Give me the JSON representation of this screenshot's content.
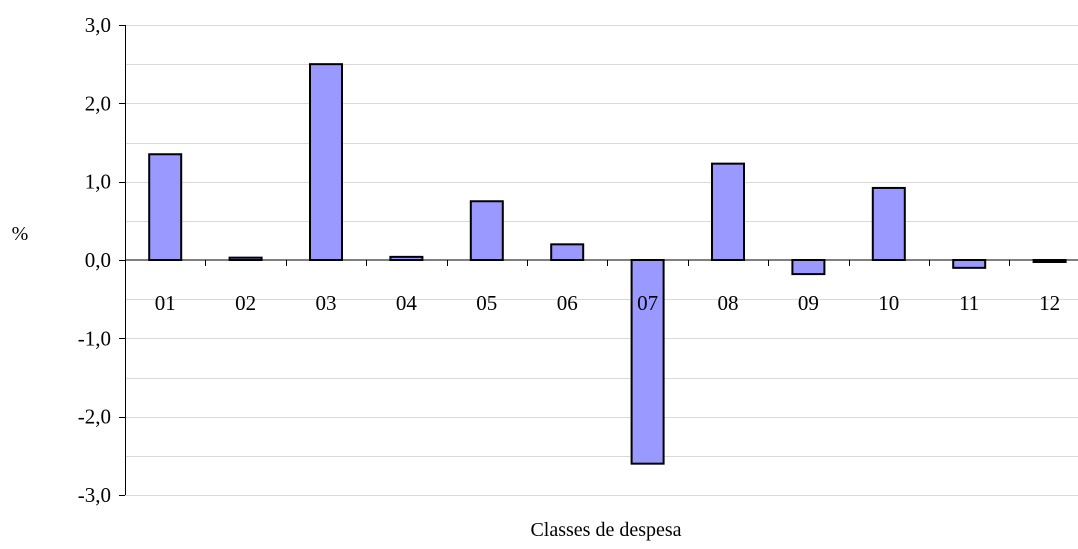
{
  "chart_data": {
    "type": "bar",
    "title": "",
    "xlabel": "Classes de despesa",
    "ylabel": "%",
    "categories": [
      "01",
      "02",
      "03",
      "04",
      "05",
      "06",
      "07",
      "08",
      "09",
      "10",
      "11",
      "12"
    ],
    "series": [
      {
        "values": [
          1.35,
          0.03,
          2.5,
          0.04,
          0.75,
          0.2,
          -2.6,
          1.23,
          -0.18,
          0.92,
          -0.1,
          -0.01
        ]
      }
    ],
    "ylim": [
      -3.0,
      3.0
    ],
    "yticks": [
      -3.0,
      -2.0,
      -1.0,
      0.0,
      1.0,
      2.0,
      3.0
    ],
    "ytick_labels": [
      "-3,0",
      "-2,0",
      "-1,0",
      "0,0",
      "1,0",
      "2,0",
      "3,0"
    ],
    "grid": true,
    "legend": "none",
    "colors": {
      "bar_fill": "#9999ff",
      "bar_stroke": "#000000",
      "gridline": "#d9d9d9",
      "axis": "#000000"
    }
  }
}
